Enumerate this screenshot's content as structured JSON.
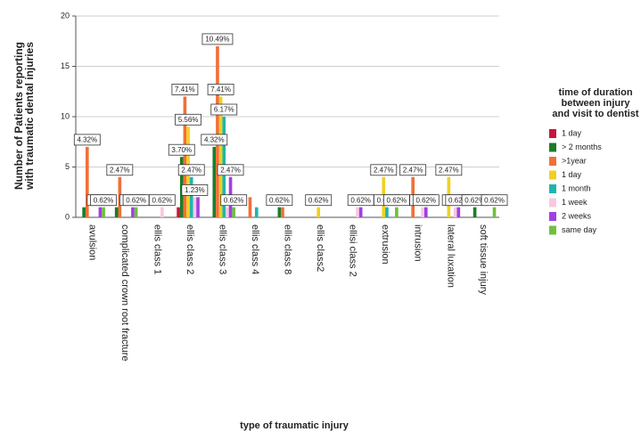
{
  "chart_data": {
    "type": "bar",
    "ylabel": [
      "Number of Patients reporting",
      "with traumatic dental injuries"
    ],
    "xlabel": "type of traumatic injury",
    "legend_title": [
      "time of duration",
      "between injury",
      "and visit to dentist"
    ],
    "legend": "right",
    "grid": true,
    "ylim": [
      0,
      20
    ],
    "yticks": [
      0,
      5,
      10,
      15,
      20
    ],
    "categories": [
      "avulsion",
      "complicated crown root fracture",
      "ellis class 1",
      "ellis class 2",
      "ellis class 3",
      "ellis class 4",
      "ellis class 8",
      "ellis class2",
      "ellisi class 2",
      "extrusion",
      "intrusion",
      "lateral luxation",
      "soft tissue injury"
    ],
    "series": [
      {
        "name": "1 day",
        "color": "#c8143c",
        "values": [
          null,
          null,
          null,
          1,
          null,
          null,
          null,
          null,
          null,
          null,
          null,
          null,
          null
        ],
        "value_labels": [
          null,
          null,
          null,
          null,
          null,
          null,
          null,
          null,
          null,
          null,
          null,
          null,
          null
        ]
      },
      {
        "name": "> 2 months",
        "color": "#1e7b2a",
        "values": [
          1,
          1,
          null,
          6,
          7,
          null,
          1,
          null,
          null,
          null,
          null,
          null,
          1
        ],
        "value_labels": [
          null,
          null,
          null,
          "3.70%",
          "4.32%",
          null,
          "0.62%",
          null,
          null,
          null,
          null,
          null,
          "0.62%"
        ]
      },
      {
        "name": ">1year",
        "color": "#f07038",
        "values": [
          7,
          4,
          null,
          12,
          17,
          2,
          1,
          null,
          null,
          null,
          4,
          null,
          null
        ],
        "value_labels": [
          "4.32%",
          "2.47%",
          null,
          "7.41%",
          "10.49%",
          null,
          null,
          null,
          null,
          null,
          "2.47%",
          null,
          null
        ]
      },
      {
        "name": "1 day",
        "color": "#f2d020",
        "values": [
          null,
          null,
          null,
          9,
          12,
          null,
          null,
          1,
          null,
          4,
          null,
          4,
          null
        ],
        "value_labels": [
          null,
          null,
          null,
          "5.56%",
          "7.41%",
          null,
          null,
          "0.62%",
          null,
          "2.47%",
          null,
          "2.47%",
          null
        ]
      },
      {
        "name": "1 month",
        "color": "#20b4b0",
        "values": [
          null,
          null,
          null,
          4,
          10,
          1,
          null,
          null,
          null,
          1,
          null,
          null,
          null
        ],
        "value_labels": [
          null,
          null,
          null,
          "2.47%",
          "6.17%",
          null,
          null,
          null,
          null,
          "0.62%",
          null,
          null,
          null
        ]
      },
      {
        "name": "1 week",
        "color": "#f8c8e0",
        "values": [
          null,
          null,
          1,
          2,
          1,
          null,
          null,
          null,
          1,
          null,
          1,
          1,
          null
        ],
        "value_labels": [
          null,
          null,
          "0.62%",
          "1.23%",
          null,
          null,
          null,
          null,
          null,
          null,
          "0.62%",
          "0.62%",
          null
        ]
      },
      {
        "name": "2 weeks",
        "color": "#a040e0",
        "values": [
          1,
          1,
          null,
          2,
          4,
          null,
          null,
          null,
          1,
          null,
          1,
          1,
          null
        ],
        "value_labels": [
          "0.62%",
          "0.62%",
          null,
          null,
          "2.47%",
          null,
          null,
          null,
          "0.62%",
          null,
          "0.62%",
          "0.62%",
          null
        ]
      },
      {
        "name": "same day",
        "color": "#70c040",
        "values": [
          1,
          1,
          null,
          null,
          1,
          null,
          null,
          null,
          null,
          1,
          null,
          null,
          1
        ],
        "value_labels": [
          "0.62%",
          "0.62%",
          null,
          null,
          "0.62%",
          null,
          null,
          null,
          null,
          "0.62%",
          null,
          null,
          "0.62%"
        ]
      }
    ]
  }
}
